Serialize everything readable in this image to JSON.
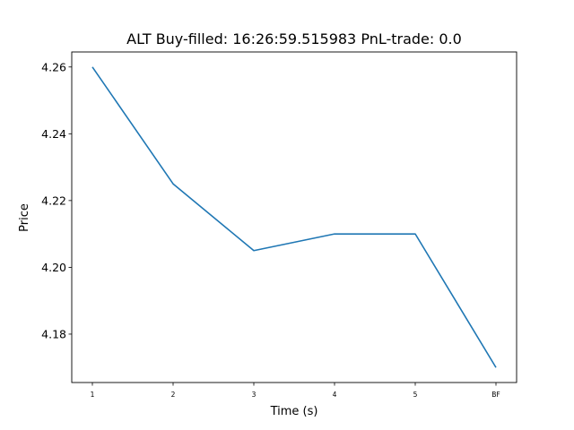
{
  "chart_data": {
    "type": "line",
    "title": "ALT  Buy-filled:  16:26:59.515983  PnL-trade:  0.0",
    "xlabel": "Time (s)",
    "ylabel": "Price",
    "categories": [
      "1",
      "2",
      "3",
      "4",
      "5",
      "BF"
    ],
    "series": [
      {
        "values": [
          4.26,
          4.225,
          4.205,
          4.21,
          4.21,
          4.17
        ],
        "color": "#1f77b4"
      }
    ],
    "ylim": [
      4.1655,
      4.2645
    ],
    "yticks": [
      "4.18",
      "4.20",
      "4.22",
      "4.24",
      "4.26"
    ],
    "grid": false,
    "legend": false
  }
}
